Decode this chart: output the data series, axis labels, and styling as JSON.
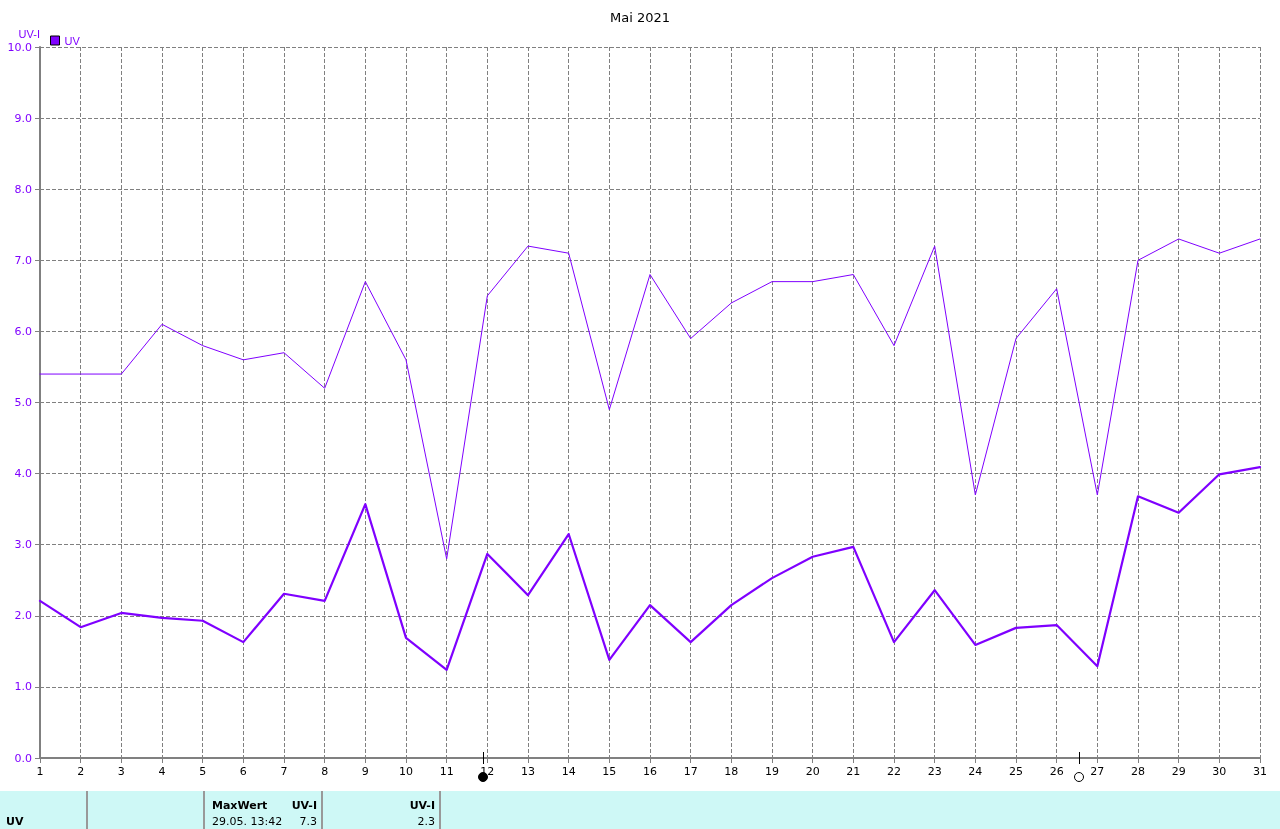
{
  "chart_data": {
    "type": "line",
    "title": "Mai 2021",
    "ylabel": "UV-I",
    "x": [
      1,
      2,
      3,
      4,
      5,
      6,
      7,
      8,
      9,
      10,
      11,
      12,
      13,
      14,
      15,
      16,
      17,
      18,
      19,
      20,
      21,
      22,
      23,
      24,
      25,
      26,
      27,
      28,
      29,
      30,
      31
    ],
    "series": [
      {
        "color": "#7f00ff",
        "values": [
          5.4,
          5.4,
          5.4,
          6.1,
          5.8,
          5.6,
          5.7,
          5.2,
          6.7,
          5.6,
          2.8,
          6.5,
          7.2,
          7.1,
          4.9,
          6.8,
          5.9,
          6.4,
          6.7,
          6.7,
          6.8,
          5.8,
          7.2,
          3.7,
          5.9,
          6.6,
          3.7,
          7.0,
          7.3,
          7.1,
          7.3
        ]
      },
      {
        "name": "UV",
        "color": "#7f00ff",
        "values": [
          2.21,
          1.84,
          2.04,
          1.97,
          1.93,
          1.63,
          2.31,
          2.21,
          3.57,
          1.69,
          1.24,
          2.87,
          2.29,
          3.15,
          1.38,
          2.15,
          1.63,
          2.15,
          2.53,
          2.83,
          2.97,
          1.63,
          2.36,
          1.59,
          1.83,
          1.87,
          1.29,
          3.68,
          3.45,
          3.99,
          4.09
        ]
      }
    ],
    "xlim": [
      1,
      31
    ],
    "xticks": [
      1,
      2,
      3,
      4,
      5,
      6,
      7,
      8,
      9,
      10,
      11,
      12,
      13,
      14,
      15,
      16,
      17,
      18,
      19,
      20,
      21,
      22,
      23,
      24,
      25,
      26,
      27,
      28,
      29,
      30,
      31
    ],
    "ylim": [
      0,
      10
    ],
    "yticks": [
      {
        "value": 0,
        "label": "0.0"
      },
      {
        "value": 1,
        "label": "1.0"
      },
      {
        "value": 2,
        "label": "2.0"
      },
      {
        "value": 3,
        "label": "3.0"
      },
      {
        "value": 4,
        "label": "4.0"
      },
      {
        "value": 5,
        "label": "5.0"
      },
      {
        "value": 6,
        "label": "6.0"
      },
      {
        "value": 7,
        "label": "7.0"
      },
      {
        "value": 8,
        "label": "8.0"
      },
      {
        "value": 9,
        "label": "9.0"
      },
      {
        "value": 10,
        "label": "10.0"
      }
    ],
    "grid": true,
    "legend": "top left",
    "marker": "none",
    "line_style": "solid",
    "annotations": [
      "UV",
      "MaxWert",
      "UV-I",
      "29.05.  13:42",
      "7.3",
      "UV-I",
      "2.3"
    ]
  }
}
